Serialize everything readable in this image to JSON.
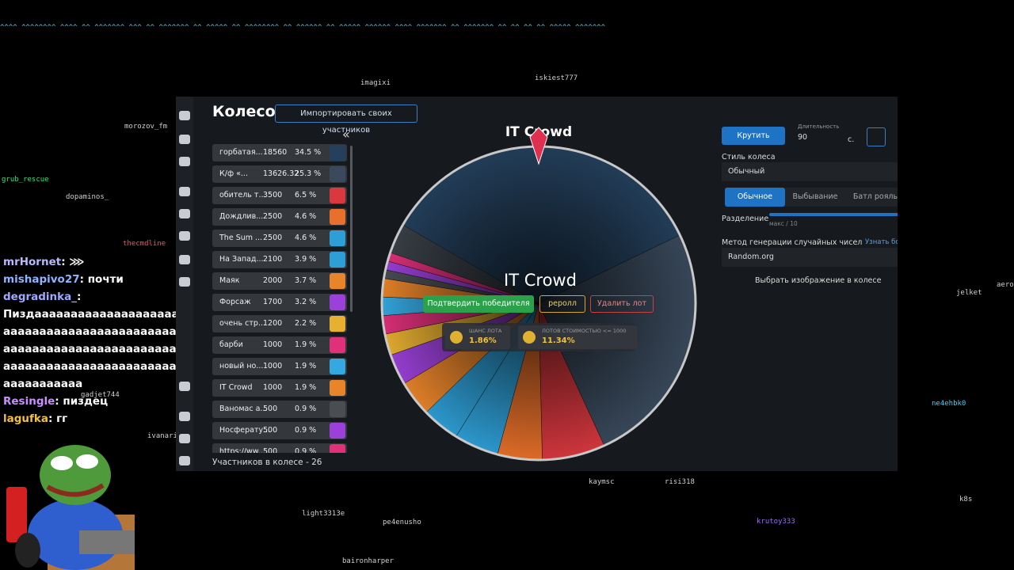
{
  "ascii_header": "^^^^ ^^^^^^^^ ^^^^ ^^ ^^^^^^^ ^^^ ^^ ^^^^^^^ ^^ ^^^^^ ^^ ^^^^^^^^ ^^ ^^^^^^ ^^ ^^^^^ ^^^^^^ ^^^^ ^^^^^^^ ^^ ^^^^^^^ ^^ ^^ ^^ ^^ ^^^^^ ^^^^^^^",
  "viewers": [
    "imagixi",
    "iskiest777",
    "morozov_fm",
    "grub_rescue",
    "dopaminos_",
    "thecmdline",
    "gadjet744",
    "ivanari",
    "light3313e",
    "pe4enusho",
    "kaymsc",
    "risi318",
    "krutoy333",
    "jelket",
    "ne4ehbk0",
    "k8s",
    "baironharper",
    "aero"
  ],
  "chat": [
    {
      "user": "mrHornet",
      "color": "#b9b9ff",
      "text": "⋙"
    },
    {
      "user": "mishapivo27",
      "color": "#8fb4ff",
      "text": "почти"
    },
    {
      "user": "degradinka_",
      "color": "#9fa8ff",
      "text": ""
    },
    {
      "user": "",
      "color": "#fff",
      "text": "Пиздааааааааааааааааааааааааааааааааааааааааааааааааааааааааааааааааааааааааааааааааааааааааааааааааааааааааааааааааааааааааааа"
    },
    {
      "user": "Resingle",
      "color": "#c98fff",
      "text": "пиздец"
    },
    {
      "user": "lagufka",
      "color": "#f0c040",
      "text": "гг"
    }
  ],
  "app": {
    "title": "Колесо",
    "import_button": "Импортировать своих участников",
    "collapse": "«",
    "items": [
      {
        "name": "горбатая...",
        "amount": 18560,
        "share": 34.5,
        "share_label": "34.5 %",
        "color": "#24405c"
      },
      {
        "name": "К/ф «...",
        "amount": 13626.32,
        "share": 25.3,
        "share_label": "25.3 %",
        "color": "#3a4a5c"
      },
      {
        "name": "обитель т...",
        "amount": 3500,
        "share": 6.5,
        "share_label": "6.5 %",
        "color": "#d9383f"
      },
      {
        "name": "Дождлив...",
        "amount": 2500,
        "share": 4.6,
        "share_label": "4.6 %",
        "color": "#e8702a"
      },
      {
        "name": "The Sum ...",
        "amount": 2500,
        "share": 4.6,
        "share_label": "4.6 %",
        "color": "#2e9fd6"
      },
      {
        "name": "На Запад...",
        "amount": 2100,
        "share": 3.9,
        "share_label": "3.9 %",
        "color": "#2e9fd6"
      },
      {
        "name": "Маяк",
        "amount": 2000,
        "share": 3.7,
        "share_label": "3.7 %",
        "color": "#e8842a"
      },
      {
        "name": "Форсаж",
        "amount": 1700,
        "share": 3.2,
        "share_label": "3.2 %",
        "color": "#9b40d8"
      },
      {
        "name": "очень стр...",
        "amount": 1200,
        "share": 2.2,
        "share_label": "2.2 %",
        "color": "#e8b030"
      },
      {
        "name": "барби",
        "amount": 1000,
        "share": 1.9,
        "share_label": "1.9 %",
        "color": "#e0307a"
      },
      {
        "name": "новый но...",
        "amount": 1000,
        "share": 1.9,
        "share_label": "1.9 %",
        "color": "#35a8e0"
      },
      {
        "name": "IT Crowd",
        "amount": 1000,
        "share": 1.9,
        "share_label": "1.9 %",
        "color": "#e8842a"
      },
      {
        "name": "Ваномас а...",
        "amount": 500,
        "share": 0.9,
        "share_label": "0.9 %",
        "color": "#4a4d52"
      },
      {
        "name": "Носферату...",
        "amount": 500,
        "share": 0.9,
        "share_label": "0.9 %",
        "color": "#9b40d8"
      },
      {
        "name": "https://ww...",
        "amount": 500,
        "share": 0.9,
        "share_label": "0.9 %",
        "color": "#e0307a"
      }
    ],
    "footer": "Участников в колесе - 26",
    "wheel": {
      "title": "IT Crowd",
      "winner": "IT Crowd",
      "confirm": "Подтвердить победителя",
      "reroll": "реролл",
      "delete": "Удалить лот",
      "stats": [
        {
          "label": "ШАНС ЛОТА",
          "value": "1.86%"
        },
        {
          "label": "ЛОТОВ СТОИМОСТЬЮ <= 1000",
          "value": "11.34%"
        }
      ]
    },
    "settings": {
      "spin": "Крутить",
      "duration_label": "Длительность",
      "duration": "90",
      "seconds": "с.",
      "style_label": "Стиль колеса",
      "style": "Обычный",
      "modes": [
        "Обычное",
        "Выбывание",
        "Батл рояль"
      ],
      "split_label": "Разделение",
      "split_hint": "макс / 10",
      "rng_label": "Метод генерации случайных чисел",
      "rng_link": "Узнать бол",
      "rng": "Random.org",
      "image": "Выбрать изображение в колесе"
    }
  }
}
